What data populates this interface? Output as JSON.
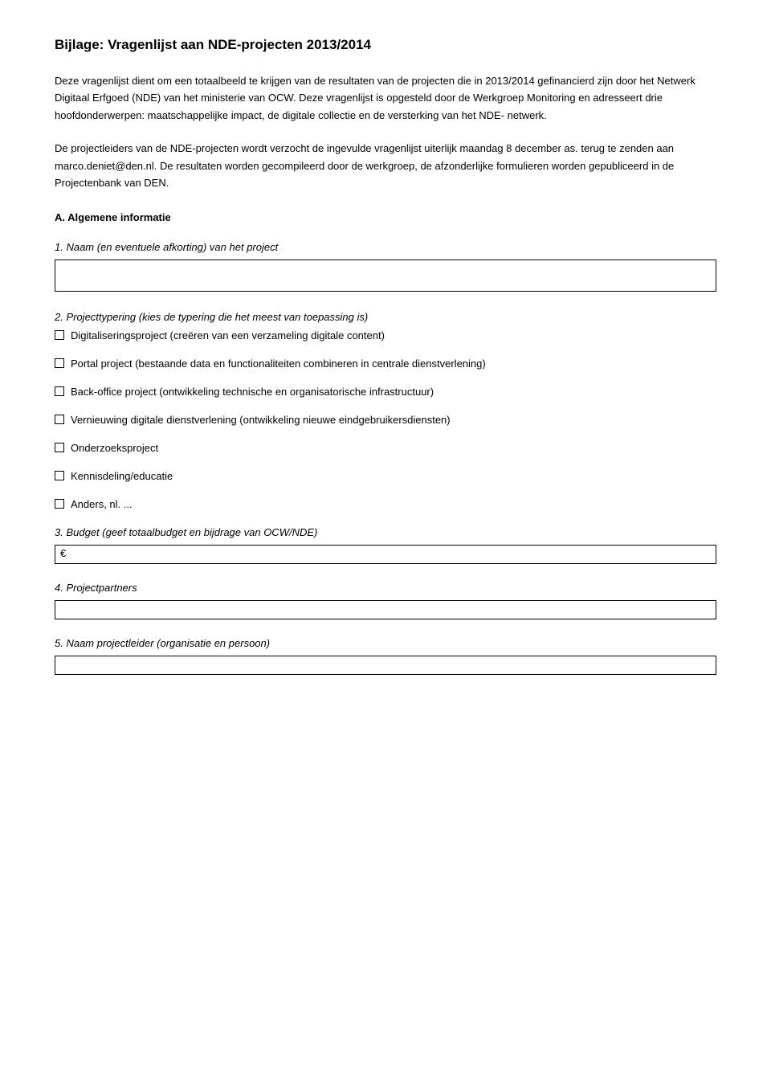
{
  "title": "Bijlage: Vragenlijst aan NDE-projecten 2013/2014",
  "para1": "Deze vragenlijst dient om een totaalbeeld te krijgen van de resultaten van de projecten die in 2013/2014 gefinancierd zijn door het Netwerk Digitaal Erfgoed (NDE) van het ministerie van OCW. Deze vragenlijst is opgesteld door de Werkgroep Monitoring en adresseert drie hoofdonderwerpen: maatschappelijke impact, de digitale collectie en de versterking van het NDE- netwerk.",
  "para2": "De projectleiders van de NDE-projecten wordt verzocht de ingevulde vragenlijst uiterlijk maandag 8 december as. terug te zenden aan marco.deniet@den.nl. De resultaten worden gecompileerd door de werkgroep, de afzonderlijke formulieren worden gepubliceerd in de Projectenbank van DEN.",
  "sectionA": {
    "heading": "A. Algemene informatie",
    "q1": {
      "label": "1. Naam (en eventuele afkorting) van het project"
    },
    "q2": {
      "label": "2. Projecttypering (kies de typering die het meest van toepassing is)",
      "options": [
        "Digitaliseringsproject (creëren van een verzameling digitale content)",
        "Portal project (bestaande data en functionaliteiten combineren in centrale dienstverlening)",
        "Back-office project (ontwikkeling technische en organisatorische infrastructuur)",
        "Vernieuwing digitale dienstverlening (ontwikkeling nieuwe eindgebruikersdiensten)",
        "Onderzoeksproject",
        "Kennisdeling/educatie",
        "Anders, nl. ..."
      ]
    },
    "q3": {
      "label": "3. Budget (geef totaalbudget en bijdrage van OCW/NDE)",
      "prefix": "€"
    },
    "q4": {
      "label": "4. Projectpartners"
    },
    "q5": {
      "label": "5. Naam projectleider (organisatie en persoon)"
    }
  }
}
